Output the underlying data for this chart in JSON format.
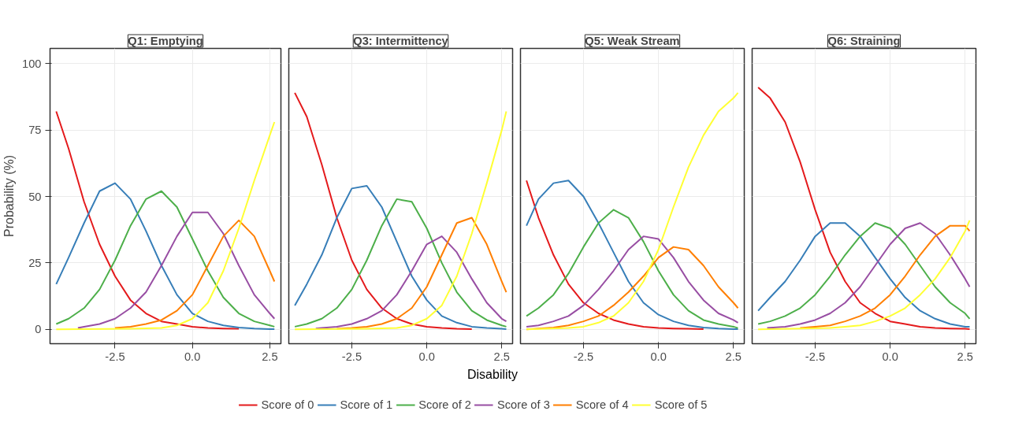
{
  "chart_data": [
    {
      "type": "line",
      "title": "Q1: Emptying",
      "ylabel": "Probability (%)",
      "xlim": [
        -4.6,
        2.86
      ],
      "ylim": [
        -5.4,
        105.7
      ],
      "xticks": [
        {
          "value": -2.5,
          "label": "-2.5"
        },
        {
          "value": 0,
          "label": "0.0"
        },
        {
          "value": 2.5,
          "label": "2.5"
        }
      ],
      "yticks": [
        0,
        25,
        50,
        75,
        100
      ],
      "grid": true,
      "legend": "bottom",
      "line_style": "solid",
      "series": [
        {
          "name": "Score of 0",
          "color": "#e41a1c",
          "x": [
            -4.4,
            -4,
            -3.5,
            -3,
            -2.5,
            -2,
            -1.5,
            -1,
            -0.5,
            0,
            0.5,
            1,
            1.5
          ],
          "values": [
            82,
            68,
            48,
            32,
            20,
            11,
            6,
            3,
            2,
            1,
            0.5,
            0.3,
            0.2
          ]
        },
        {
          "name": "Score of 1",
          "color": "#377eb8",
          "x": [
            -4.4,
            -4,
            -3.5,
            -3,
            -2.5,
            -2,
            -1.5,
            -1,
            -0.5,
            0,
            0.5,
            1,
            1.5,
            2,
            2.5,
            2.65
          ],
          "values": [
            17,
            27,
            40,
            52,
            55,
            49,
            37,
            24,
            13,
            6,
            3,
            1.5,
            0.7,
            0.3,
            0.1,
            0.1
          ]
        },
        {
          "name": "Score of 2",
          "color": "#4daf4a",
          "x": [
            -4.4,
            -4,
            -3.5,
            -3,
            -2.5,
            -2,
            -1.5,
            -1,
            -0.5,
            0,
            0.5,
            1,
            1.5,
            2,
            2.5,
            2.65
          ],
          "values": [
            2,
            4,
            8,
            15,
            26,
            39,
            49,
            52,
            46,
            34,
            22,
            12,
            6,
            3,
            1.5,
            1
          ]
        },
        {
          "name": "Score of 3",
          "color": "#984ea3",
          "x": [
            -3.7,
            -3.5,
            -3,
            -2.5,
            -2,
            -1.5,
            -1,
            -0.5,
            0,
            0.5,
            1,
            1.5,
            2,
            2.5,
            2.65
          ],
          "values": [
            0.5,
            1,
            2,
            4,
            8,
            14,
            24,
            35,
            44,
            44,
            36,
            24,
            13,
            6,
            4
          ]
        },
        {
          "name": "Score of 4",
          "color": "#ff7f00",
          "x": [
            -2.5,
            -2,
            -1.5,
            -1,
            -0.5,
            0,
            0.5,
            1,
            1.5,
            2,
            2.5,
            2.65
          ],
          "values": [
            0.5,
            1,
            2,
            3.5,
            7,
            13,
            24,
            35,
            41,
            35,
            22,
            18
          ]
        },
        {
          "name": "Score of 5",
          "color": "#ffff33",
          "x": [
            -4.4,
            -2,
            -1,
            -0.5,
            0,
            0.5,
            1,
            1.5,
            2,
            2.5,
            2.65
          ],
          "values": [
            0,
            0.2,
            0.5,
            1.5,
            4,
            10,
            22,
            38,
            56,
            73,
            78
          ]
        }
      ]
    },
    {
      "type": "line",
      "title": "Q3: Intermittency",
      "xlabel": "Disability",
      "xlim": [
        -4.6,
        2.86
      ],
      "ylim": [
        -5.4,
        105.7
      ],
      "xticks": [
        {
          "value": -2.5,
          "label": "-2.5"
        },
        {
          "value": 0,
          "label": "0.0"
        },
        {
          "value": 2.5,
          "label": "2.5"
        }
      ],
      "yticks": [
        0,
        25,
        50,
        75,
        100
      ],
      "tick_labels": "x",
      "grid": true,
      "line_style": "solid",
      "series": [
        {
          "color": "#e41a1c",
          "x": [
            -4.4,
            -4,
            -3.5,
            -3,
            -2.5,
            -2,
            -1.5,
            -1,
            -0.5,
            0,
            0.5,
            1,
            1.5
          ],
          "values": [
            89,
            80,
            62,
            42,
            26,
            15,
            8,
            4,
            2,
            1,
            0.5,
            0.2,
            0.1
          ]
        },
        {
          "color": "#377eb8",
          "x": [
            -4.4,
            -4,
            -3.5,
            -3,
            -2.5,
            -2,
            -1.5,
            -1,
            -0.5,
            0,
            0.5,
            1,
            1.5,
            2,
            2.5,
            2.65
          ],
          "values": [
            9,
            17,
            28,
            42,
            53,
            54,
            46,
            33,
            20,
            11,
            5,
            2.5,
            1,
            0.5,
            0.2,
            0.1
          ]
        },
        {
          "color": "#4daf4a",
          "x": [
            -4.4,
            -4,
            -3.5,
            -3,
            -2.5,
            -2,
            -1.5,
            -1,
            -0.5,
            0,
            0.5,
            1,
            1.5,
            2,
            2.5,
            2.65
          ],
          "values": [
            1,
            2,
            4,
            8,
            15,
            26,
            39,
            49,
            48,
            38,
            25,
            14,
            7,
            3.5,
            1.5,
            1
          ]
        },
        {
          "color": "#984ea3",
          "x": [
            -3.7,
            -3.5,
            -3,
            -2.5,
            -2,
            -1.5,
            -1,
            -0.5,
            0,
            0.5,
            1,
            1.5,
            2,
            2.5,
            2.65
          ],
          "values": [
            0.3,
            0.5,
            1,
            2,
            4,
            7,
            13,
            22,
            32,
            35,
            29,
            19,
            10,
            4,
            3
          ]
        },
        {
          "color": "#ff7f00",
          "x": [
            -3,
            -2.5,
            -2,
            -1.5,
            -1,
            -0.5,
            0,
            0.5,
            1,
            1.5,
            2,
            2.5,
            2.65
          ],
          "values": [
            0.2,
            0.5,
            1,
            2,
            4,
            8,
            16,
            28,
            40,
            42,
            32,
            18,
            14
          ]
        },
        {
          "color": "#ffff33",
          "x": [
            -4.4,
            -2,
            -1,
            -0.5,
            0,
            0.5,
            1,
            1.5,
            2,
            2.5,
            2.65
          ],
          "values": [
            0,
            0.2,
            0.5,
            1.5,
            4,
            9,
            20,
            36,
            55,
            75,
            82
          ]
        }
      ]
    },
    {
      "type": "line",
      "title": "Q5: Weak Stream",
      "xlim": [
        -4.6,
        2.86
      ],
      "ylim": [
        -5.4,
        105.7
      ],
      "xticks": [
        {
          "value": -2.5,
          "label": "-2.5"
        },
        {
          "value": 0,
          "label": "0.0"
        },
        {
          "value": 2.5,
          "label": "2.5"
        }
      ],
      "yticks": [
        0,
        25,
        50,
        75,
        100
      ],
      "tick_labels": "x",
      "grid": true,
      "line_style": "solid",
      "series": [
        {
          "color": "#e41a1c",
          "x": [
            -4.4,
            -4,
            -3.5,
            -3,
            -2.5,
            -2,
            -1.5,
            -1,
            -0.5,
            0,
            0.5,
            1,
            1.5
          ],
          "values": [
            56,
            42,
            28,
            17,
            10,
            6,
            3.5,
            2,
            1,
            0.5,
            0.3,
            0.2,
            0.1
          ]
        },
        {
          "color": "#377eb8",
          "x": [
            -4.4,
            -4,
            -3.5,
            -3,
            -2.5,
            -2,
            -1.5,
            -1,
            -0.5,
            0,
            0.5,
            1,
            1.5,
            2,
            2.5,
            2.65
          ],
          "values": [
            39,
            49,
            55,
            56,
            50,
            40,
            29,
            18,
            10,
            5.5,
            3,
            1.5,
            0.7,
            0.3,
            0.1,
            0.1
          ]
        },
        {
          "color": "#4daf4a",
          "x": [
            -4.4,
            -4,
            -3.5,
            -3,
            -2.5,
            -2,
            -1.5,
            -1,
            -0.5,
            0,
            0.5,
            1,
            1.5,
            2,
            2.5,
            2.65
          ],
          "values": [
            5,
            8,
            13,
            21,
            31,
            40,
            45,
            42,
            33,
            22,
            13,
            7,
            3.5,
            2,
            1,
            0.5
          ]
        },
        {
          "color": "#984ea3",
          "x": [
            -4.4,
            -4,
            -3.5,
            -3,
            -2.5,
            -2,
            -1.5,
            -1,
            -0.5,
            0,
            0.5,
            1,
            1.5,
            2,
            2.5,
            2.65
          ],
          "values": [
            1,
            1.5,
            3,
            5,
            9,
            15,
            22,
            30,
            35,
            34,
            27,
            18,
            11,
            6,
            3.5,
            2.5
          ]
        },
        {
          "color": "#ff7f00",
          "x": [
            -4.4,
            -4,
            -3.5,
            -3,
            -2.5,
            -2,
            -1.5,
            -1,
            -0.5,
            0,
            0.5,
            1,
            1.5,
            2,
            2.5,
            2.65
          ],
          "values": [
            0,
            0.3,
            0.7,
            1.5,
            3,
            5,
            9,
            14,
            20,
            27,
            31,
            30,
            24,
            16,
            10,
            8
          ]
        },
        {
          "color": "#ffff33",
          "x": [
            -4.4,
            -3,
            -2.5,
            -2,
            -1.5,
            -1,
            -0.5,
            0,
            0.5,
            1,
            1.5,
            2,
            2.5,
            2.65
          ],
          "values": [
            0,
            0.5,
            1,
            2.5,
            5,
            10,
            18,
            30,
            46,
            61,
            73,
            82,
            87,
            89
          ]
        }
      ]
    },
    {
      "type": "line",
      "title": "Q6: Straining",
      "xlim": [
        -4.6,
        2.86
      ],
      "ylim": [
        -5.4,
        105.7
      ],
      "xticks": [
        {
          "value": -2.5,
          "label": "-2.5"
        },
        {
          "value": 0,
          "label": "0.0"
        },
        {
          "value": 2.5,
          "label": "2.5"
        }
      ],
      "yticks": [
        0,
        25,
        50,
        75,
        100
      ],
      "tick_labels": "x",
      "grid": true,
      "line_style": "solid",
      "series": [
        {
          "color": "#e41a1c",
          "x": [
            -4.4,
            -4,
            -3.5,
            -3,
            -2.5,
            -2,
            -1.5,
            -1,
            -0.5,
            0,
            0.5,
            1,
            1.5,
            2,
            2.5,
            2.65
          ],
          "values": [
            91,
            87,
            78,
            63,
            45,
            29,
            18,
            10,
            6,
            3,
            2,
            1,
            0.5,
            0.3,
            0.2,
            0.1
          ]
        },
        {
          "color": "#377eb8",
          "x": [
            -4.4,
            -4,
            -3.5,
            -3,
            -2.5,
            -2,
            -1.5,
            -1,
            -0.5,
            0,
            0.5,
            1,
            1.5,
            2,
            2.5,
            2.65
          ],
          "values": [
            7,
            12,
            18,
            26,
            35,
            40,
            40,
            35,
            27,
            19,
            12,
            7,
            4,
            2,
            1,
            1
          ]
        },
        {
          "color": "#4daf4a",
          "x": [
            -4.4,
            -4,
            -3.5,
            -3,
            -2.5,
            -2,
            -1.5,
            -1,
            -0.5,
            0,
            0.5,
            1,
            1.5,
            2,
            2.5,
            2.65
          ],
          "values": [
            2,
            3,
            5,
            8,
            13,
            20,
            28,
            35,
            40,
            38,
            32,
            24,
            16,
            10,
            6,
            4
          ]
        },
        {
          "color": "#984ea3",
          "x": [
            -4.1,
            -3.5,
            -3,
            -2.5,
            -2,
            -1.5,
            -1,
            -0.5,
            0,
            0.5,
            1,
            1.5,
            2,
            2.5,
            2.65
          ],
          "values": [
            0.5,
            1,
            2,
            3.5,
            6,
            10,
            16,
            24,
            32,
            38,
            40,
            36,
            28,
            19,
            16
          ]
        },
        {
          "color": "#ff7f00",
          "x": [
            -3,
            -2.5,
            -2,
            -1.5,
            -1,
            -0.5,
            0,
            0.5,
            1,
            1.5,
            2,
            2.5,
            2.65
          ],
          "values": [
            0.5,
            1,
            1.5,
            3,
            5,
            8,
            13,
            20,
            28,
            35,
            39,
            39,
            37
          ]
        },
        {
          "color": "#ffff33",
          "x": [
            -4.4,
            -2,
            -1.5,
            -1,
            -0.5,
            0,
            0.5,
            1,
            1.5,
            2,
            2.5,
            2.65
          ],
          "values": [
            0,
            0.5,
            1,
            1.5,
            3,
            5,
            8,
            13,
            19,
            27,
            37,
            41
          ]
        }
      ]
    }
  ]
}
